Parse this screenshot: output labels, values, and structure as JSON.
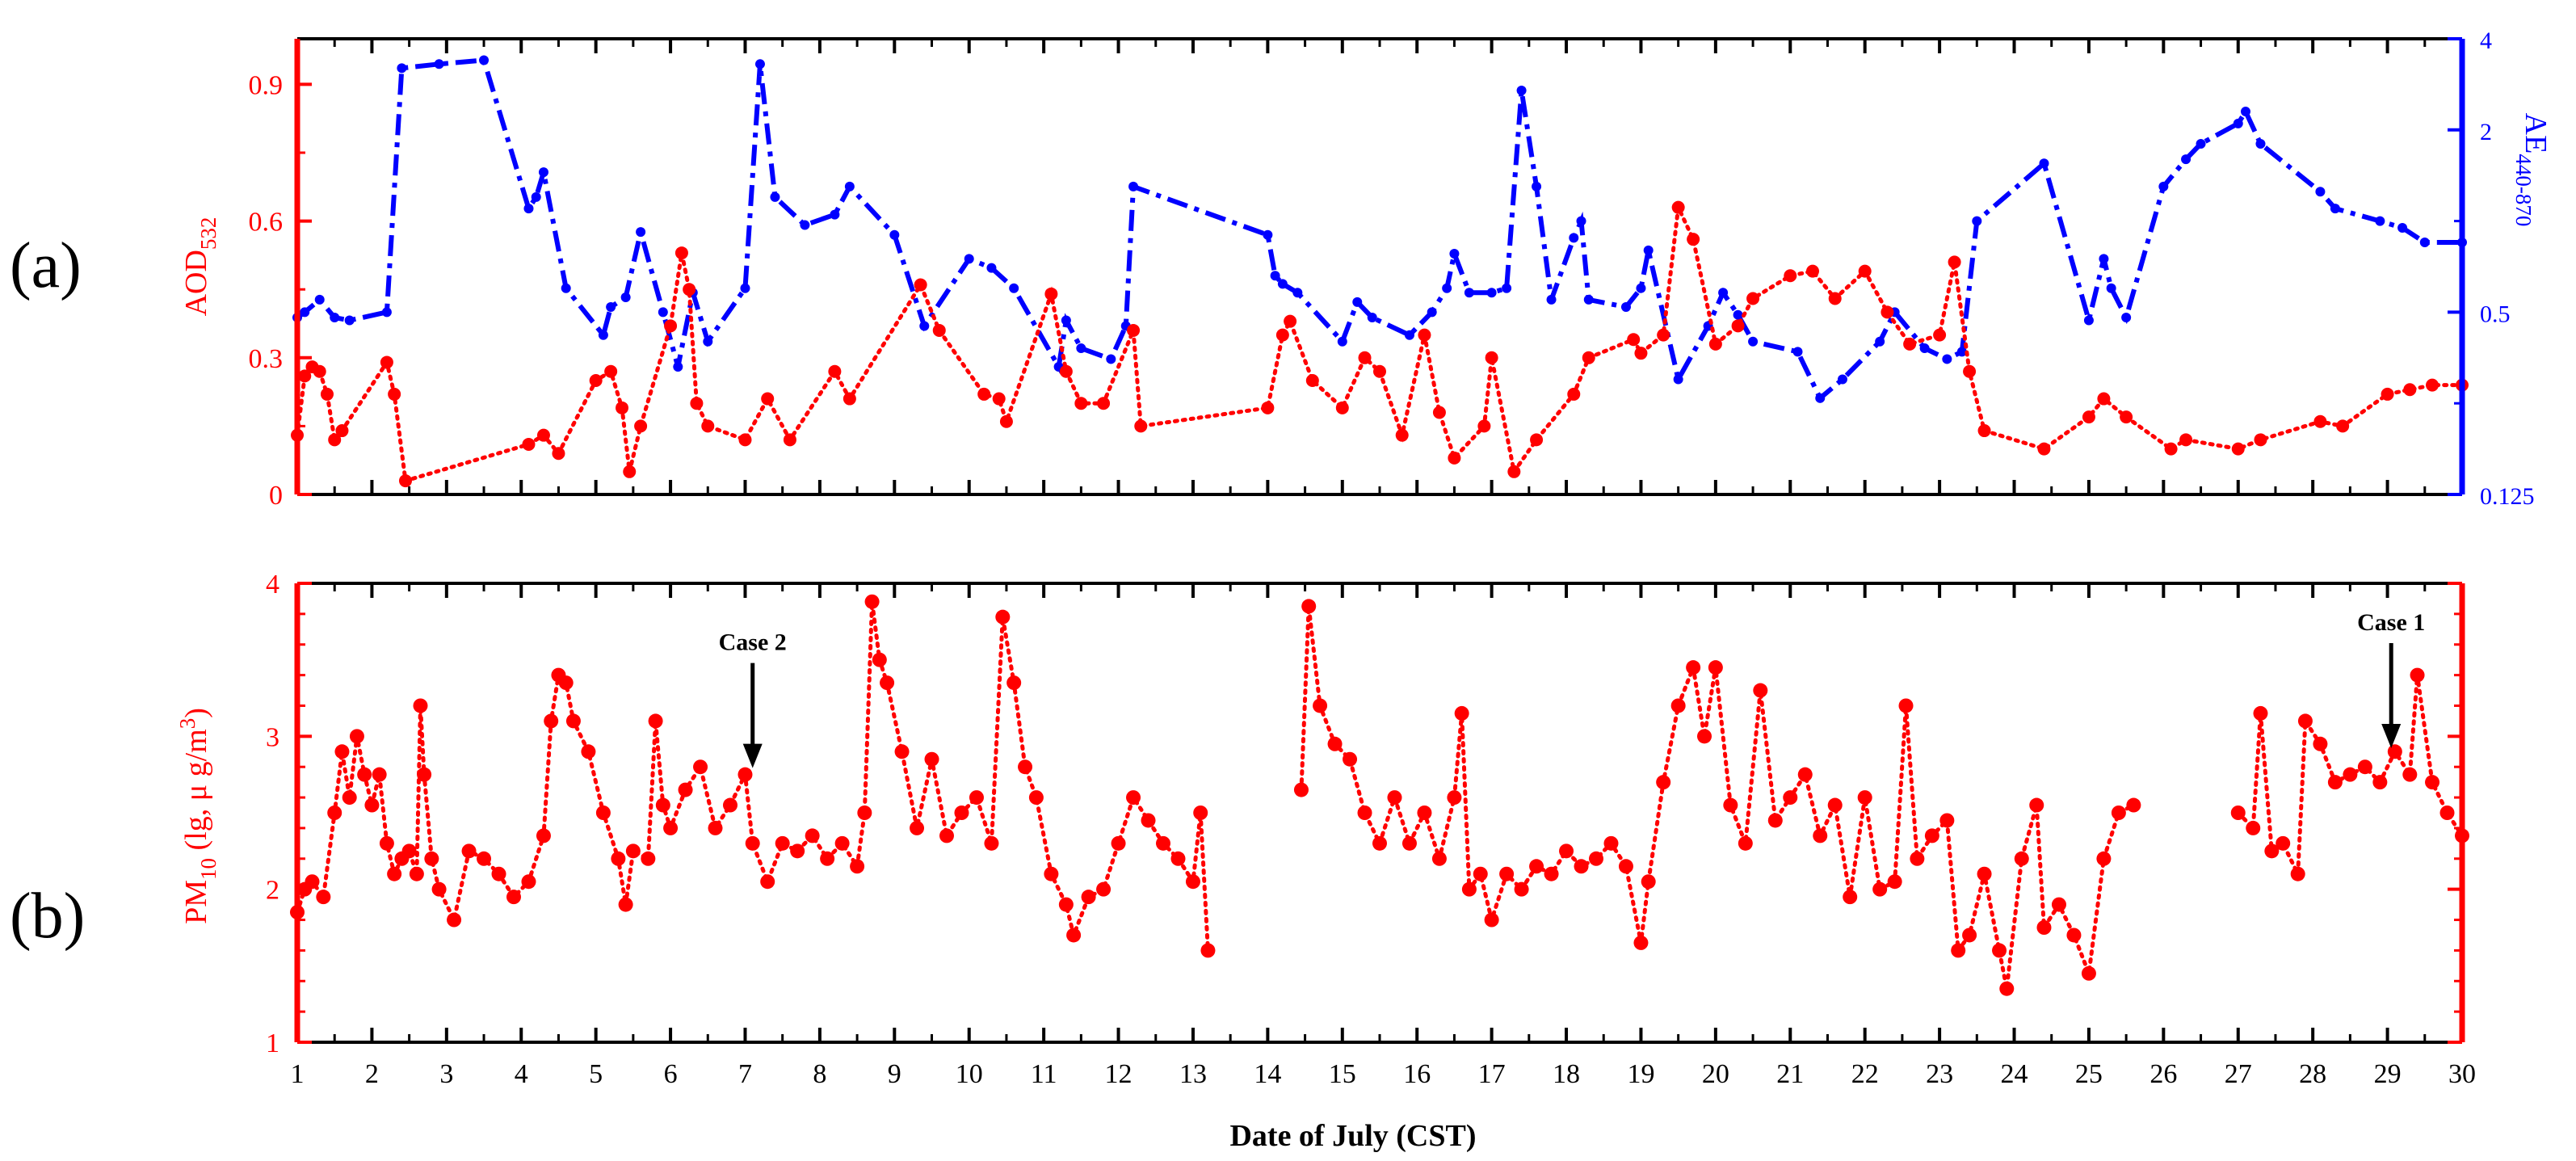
{
  "figure": {
    "panel_a_label": "(a)",
    "panel_b_label": "(b)",
    "xlabel": "Date of July (CST)",
    "colors": {
      "aod": "#ff0000",
      "ae": "#0000ff",
      "pm": "#ff0000",
      "axis": "#000000"
    }
  },
  "chart_data": [
    {
      "type": "line",
      "panel": "a",
      "title": "",
      "xlabel": "",
      "xlim": [
        1,
        30
      ],
      "xticks": [
        1,
        2,
        3,
        4,
        5,
        6,
        7,
        8,
        9,
        10,
        11,
        12,
        13,
        14,
        15,
        16,
        17,
        18,
        19,
        20,
        21,
        22,
        23,
        24,
        25,
        26,
        27,
        28,
        29,
        30
      ],
      "left_axis": {
        "label_main": "AOD",
        "label_sub": "532",
        "ylim": [
          0,
          1.0
        ],
        "ticks": [
          0,
          0.3,
          0.6,
          0.9
        ],
        "tick_labels": [
          "0",
          "0.3",
          "0.6",
          "0.9"
        ]
      },
      "right_axis": {
        "label_main": "AE",
        "label_sub": "440-870",
        "scale": "log2",
        "ylim": [
          0.125,
          4
        ],
        "ticks": [
          0.125,
          0.5,
          2,
          4
        ],
        "tick_labels": [
          "0.125",
          "0.5",
          "2",
          "4"
        ]
      },
      "series": [
        {
          "name": "AOD532",
          "axis": "left",
          "style": "dotted-with-markers",
          "x": [
            1.0,
            1.1,
            1.2,
            1.3,
            1.4,
            1.5,
            1.6,
            2.2,
            2.3,
            2.45,
            4.1,
            4.3,
            4.5,
            5.0,
            5.2,
            5.35,
            5.45,
            5.6,
            6.0,
            6.15,
            6.25,
            6.35,
            6.5,
            7.0,
            7.3,
            7.6,
            8.2,
            8.4,
            9.35,
            9.6,
            10.2,
            10.4,
            10.5,
            11.1,
            11.3,
            11.5,
            11.8,
            12.2,
            12.3,
            14.0,
            14.2,
            14.3,
            14.6,
            15.0,
            15.3,
            15.5,
            15.8,
            16.1,
            16.3,
            16.5,
            16.9,
            17.0,
            17.3,
            17.6,
            18.1,
            18.3,
            18.9,
            19.0,
            19.3,
            19.5,
            19.7,
            20.0,
            20.3,
            20.5,
            21.0,
            21.3,
            21.6,
            22.0,
            22.3,
            22.6,
            23.0,
            23.2,
            23.4,
            23.6,
            24.4,
            25.0,
            25.2,
            25.5,
            26.1,
            26.3,
            27.0,
            27.3,
            28.1,
            28.4,
            29.0,
            29.3,
            29.6,
            30.0
          ],
          "y": [
            0.13,
            0.26,
            0.28,
            0.27,
            0.22,
            0.12,
            0.14,
            0.29,
            0.22,
            0.03,
            0.11,
            0.13,
            0.09,
            0.25,
            0.27,
            0.19,
            0.05,
            0.15,
            0.37,
            0.53,
            0.45,
            0.2,
            0.15,
            0.12,
            0.21,
            0.12,
            0.27,
            0.21,
            0.46,
            0.36,
            0.22,
            0.21,
            0.16,
            0.44,
            0.27,
            0.2,
            0.2,
            0.36,
            0.15,
            0.19,
            0.35,
            0.38,
            0.25,
            0.19,
            0.3,
            0.27,
            0.13,
            0.35,
            0.18,
            0.08,
            0.15,
            0.3,
            0.05,
            0.12,
            0.22,
            0.3,
            0.34,
            0.31,
            0.35,
            0.63,
            0.56,
            0.33,
            0.37,
            0.43,
            0.48,
            0.49,
            0.43,
            0.49,
            0.4,
            0.33,
            0.35,
            0.51,
            0.27,
            0.14,
            0.1,
            0.17,
            0.21,
            0.17,
            0.1,
            0.12,
            0.1,
            0.12,
            0.16,
            0.15,
            0.22,
            0.23,
            0.24,
            0.24
          ]
        },
        {
          "name": "AE440-870",
          "axis": "right",
          "style": "dashdot-with-markers",
          "x": [
            1.0,
            1.1,
            1.3,
            1.5,
            1.7,
            2.2,
            2.4,
            2.9,
            3.5,
            4.1,
            4.2,
            4.3,
            4.6,
            5.1,
            5.2,
            5.4,
            5.6,
            5.9,
            6.1,
            6.3,
            6.5,
            7.0,
            7.2,
            7.4,
            7.8,
            8.2,
            8.4,
            9.0,
            9.4,
            10.0,
            10.3,
            10.6,
            11.2,
            11.3,
            11.5,
            11.9,
            12.1,
            12.2,
            14.0,
            14.1,
            14.2,
            14.4,
            15.0,
            15.2,
            15.4,
            15.9,
            16.2,
            16.4,
            16.5,
            16.7,
            17.0,
            17.2,
            17.4,
            17.6,
            17.8,
            18.1,
            18.2,
            18.3,
            18.8,
            19.0,
            19.1,
            19.5,
            19.9,
            20.1,
            20.3,
            20.5,
            21.1,
            21.4,
            21.7,
            22.2,
            22.4,
            22.8,
            23.1,
            23.3,
            23.5,
            24.4,
            25.0,
            25.2,
            25.3,
            25.5,
            26.0,
            26.3,
            26.5,
            27.0,
            27.1,
            27.3,
            28.1,
            28.3,
            28.9,
            29.2,
            29.5,
            30.0
          ],
          "y": [
            0.48,
            0.5,
            0.55,
            0.48,
            0.47,
            0.5,
            3.2,
            3.3,
            3.4,
            1.1,
            1.2,
            1.45,
            0.6,
            0.42,
            0.52,
            0.56,
            0.92,
            0.5,
            0.33,
            0.58,
            0.4,
            0.6,
            3.3,
            1.2,
            0.97,
            1.05,
            1.3,
            0.9,
            0.45,
            0.75,
            0.7,
            0.6,
            0.33,
            0.47,
            0.38,
            0.35,
            0.45,
            1.3,
            0.9,
            0.66,
            0.62,
            0.58,
            0.4,
            0.54,
            0.48,
            0.42,
            0.5,
            0.6,
            0.78,
            0.58,
            0.58,
            0.6,
            2.7,
            1.3,
            0.55,
            0.88,
            1.0,
            0.55,
            0.52,
            0.6,
            0.8,
            0.3,
            0.45,
            0.58,
            0.49,
            0.4,
            0.37,
            0.26,
            0.3,
            0.4,
            0.5,
            0.38,
            0.35,
            0.37,
            1.0,
            1.55,
            0.47,
            0.75,
            0.6,
            0.48,
            1.3,
            1.6,
            1.8,
            2.1,
            2.3,
            1.8,
            1.25,
            1.1,
            1.0,
            0.95,
            0.85,
            0.85
          ]
        }
      ]
    },
    {
      "type": "line",
      "panel": "b",
      "title": "",
      "xlabel": "Date of July (CST)",
      "xlim": [
        1,
        30
      ],
      "xticks": [
        1,
        2,
        3,
        4,
        5,
        6,
        7,
        8,
        9,
        10,
        11,
        12,
        13,
        14,
        15,
        16,
        17,
        18,
        19,
        20,
        21,
        22,
        23,
        24,
        25,
        26,
        27,
        28,
        29,
        30
      ],
      "ylabel_main": "PM",
      "ylabel_sub": "10",
      "ylabel_rest": " (lg, μ g/m",
      "ylabel_sup": "3",
      "ylabel_end": ")",
      "ylim": [
        1,
        4
      ],
      "yticks": [
        1,
        2,
        3,
        4
      ],
      "annotations": [
        {
          "text": "Case 2",
          "x": 7.1,
          "y": 2.75
        },
        {
          "text": "Case 1",
          "x": 29.05,
          "y": 2.88
        }
      ],
      "series": [
        {
          "name": "PM10",
          "style": "dotted-with-markers",
          "x": [
            1.0,
            1.1,
            1.2,
            1.35,
            1.5,
            1.6,
            1.7,
            1.8,
            1.9,
            2.0,
            2.1,
            2.2,
            2.3,
            2.4,
            2.5,
            2.6,
            2.65,
            2.7,
            2.8,
            2.9,
            3.1,
            3.3,
            3.5,
            3.7,
            3.9,
            4.1,
            4.3,
            4.4,
            4.5,
            4.6,
            4.7,
            4.9,
            5.1,
            5.3,
            5.4,
            5.5,
            5.7,
            5.8,
            5.9,
            6.0,
            6.2,
            6.4,
            6.6,
            6.8,
            7.0,
            7.1,
            7.3,
            7.5,
            7.7,
            7.9,
            8.1,
            8.3,
            8.5,
            8.6,
            8.7,
            8.8,
            8.9,
            9.1,
            9.3,
            9.5,
            9.7,
            9.9,
            10.1,
            10.3,
            10.45,
            10.6,
            10.75,
            10.9,
            11.1,
            11.3,
            11.4,
            11.6,
            11.8,
            12.0,
            12.2,
            12.4,
            12.6,
            12.8,
            13.0,
            13.1,
            13.2,
            14.45,
            14.55,
            14.7,
            14.9,
            15.1,
            15.3,
            15.5,
            15.7,
            15.9,
            16.1,
            16.3,
            16.5,
            16.6,
            16.7,
            16.85,
            17.0,
            17.2,
            17.4,
            17.6,
            17.8,
            18.0,
            18.2,
            18.4,
            18.6,
            18.8,
            19.0,
            19.1,
            19.3,
            19.5,
            19.7,
            19.85,
            20.0,
            20.2,
            20.4,
            20.6,
            20.8,
            21.0,
            21.2,
            21.4,
            21.6,
            21.8,
            22.0,
            22.2,
            22.4,
            22.55,
            22.7,
            22.9,
            23.1,
            23.25,
            23.4,
            23.6,
            23.8,
            23.9,
            24.1,
            24.3,
            24.4,
            24.6,
            24.8,
            25.0,
            25.2,
            25.4,
            25.6,
            27.0,
            27.2,
            27.3,
            27.45,
            27.6,
            27.8,
            27.9,
            28.1,
            28.3,
            28.5,
            28.7,
            28.9,
            29.1,
            29.3,
            29.4,
            29.6,
            29.8,
            30.0
          ],
          "y": [
            1.85,
            2.0,
            2.05,
            1.95,
            2.5,
            2.9,
            2.6,
            3.0,
            2.75,
            2.55,
            2.75,
            2.3,
            2.1,
            2.2,
            2.25,
            2.1,
            3.2,
            2.75,
            2.2,
            2.0,
            1.8,
            2.25,
            2.2,
            2.1,
            1.95,
            2.05,
            2.35,
            3.1,
            3.4,
            3.35,
            3.1,
            2.9,
            2.5,
            2.2,
            1.9,
            2.25,
            2.2,
            3.1,
            2.55,
            2.4,
            2.65,
            2.8,
            2.4,
            2.55,
            2.75,
            2.3,
            2.05,
            2.3,
            2.25,
            2.35,
            2.2,
            2.3,
            2.15,
            2.5,
            3.88,
            3.5,
            3.35,
            2.9,
            2.4,
            2.85,
            2.35,
            2.5,
            2.6,
            2.3,
            3.78,
            3.35,
            2.8,
            2.6,
            2.1,
            1.9,
            1.7,
            1.95,
            2.0,
            2.3,
            2.6,
            2.45,
            2.3,
            2.2,
            2.05,
            2.5,
            1.6,
            2.65,
            3.85,
            3.2,
            2.95,
            2.85,
            2.5,
            2.3,
            2.6,
            2.3,
            2.5,
            2.2,
            2.6,
            3.15,
            2.0,
            2.1,
            1.8,
            2.1,
            2.0,
            2.15,
            2.1,
            2.25,
            2.15,
            2.2,
            2.3,
            2.15,
            1.65,
            2.05,
            2.7,
            3.2,
            3.45,
            3.0,
            3.45,
            2.55,
            2.3,
            3.3,
            2.45,
            2.6,
            2.75,
            2.35,
            2.55,
            1.95,
            2.6,
            2.0,
            2.05,
            3.2,
            2.2,
            2.35,
            2.45,
            1.6,
            1.7,
            2.1,
            1.6,
            1.35,
            2.2,
            2.55,
            1.75,
            1.9,
            1.7,
            1.45,
            2.2,
            2.5,
            2.55,
            2.5,
            2.4,
            3.15,
            2.25,
            2.3,
            2.1,
            3.1,
            2.95,
            2.7,
            2.75,
            2.8,
            2.7,
            2.9,
            2.75,
            3.4,
            2.7,
            2.5,
            2.35
          ]
        }
      ]
    }
  ]
}
